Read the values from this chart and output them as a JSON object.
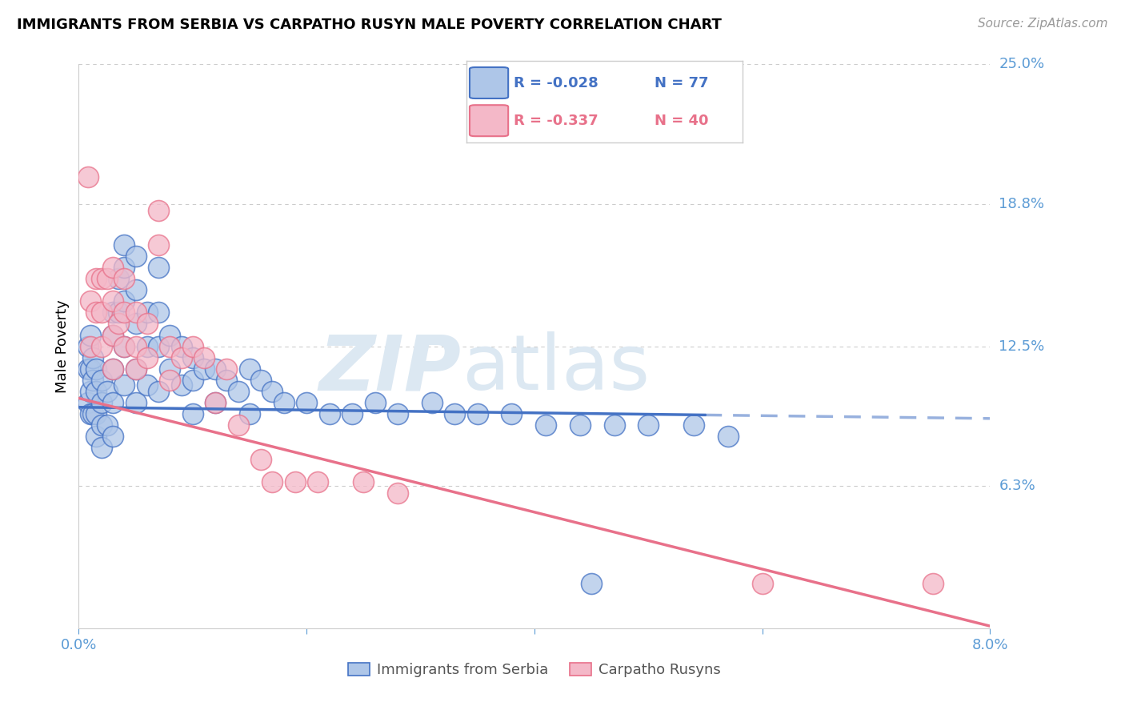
{
  "title": "IMMIGRANTS FROM SERBIA VS CARPATHO RUSYN MALE POVERTY CORRELATION CHART",
  "source": "Source: ZipAtlas.com",
  "xlabel_serbia": "Immigrants from Serbia",
  "xlabel_rusyn": "Carpatho Rusyns",
  "ylabel": "Male Poverty",
  "xlim": [
    0.0,
    0.08
  ],
  "ylim": [
    0.0,
    0.25
  ],
  "ytick_labels": [
    "25.0%",
    "18.8%",
    "12.5%",
    "6.3%"
  ],
  "ytick_vals": [
    0.25,
    0.188,
    0.125,
    0.063
  ],
  "legend_r_serbia": "R = -0.028",
  "legend_n_serbia": "N = 77",
  "legend_r_rusyn": "R = -0.337",
  "legend_n_rusyn": "N = 40",
  "color_serbia_fill": "#aec6e8",
  "color_rusyn_fill": "#f4b8c8",
  "color_serbia_edge": "#4472c4",
  "color_rusyn_edge": "#e8718a",
  "color_serbia_line": "#4472c4",
  "color_rusyn_line": "#e8718a",
  "color_tick_label": "#5b9bd5",
  "serbia_line_y0": 0.098,
  "serbia_line_y1": 0.093,
  "rusyn_line_y0": 0.102,
  "rusyn_line_y1": 0.001,
  "serbia_x": [
    0.0008,
    0.0008,
    0.0008,
    0.001,
    0.001,
    0.001,
    0.001,
    0.0012,
    0.0012,
    0.0012,
    0.0015,
    0.0015,
    0.0015,
    0.0015,
    0.002,
    0.002,
    0.002,
    0.002,
    0.0025,
    0.0025,
    0.003,
    0.003,
    0.003,
    0.003,
    0.003,
    0.0035,
    0.0035,
    0.004,
    0.004,
    0.004,
    0.004,
    0.004,
    0.005,
    0.005,
    0.005,
    0.005,
    0.005,
    0.006,
    0.006,
    0.006,
    0.007,
    0.007,
    0.007,
    0.007,
    0.008,
    0.008,
    0.009,
    0.009,
    0.01,
    0.01,
    0.01,
    0.011,
    0.012,
    0.012,
    0.013,
    0.014,
    0.015,
    0.015,
    0.016,
    0.017,
    0.018,
    0.02,
    0.022,
    0.024,
    0.026,
    0.028,
    0.031,
    0.033,
    0.035,
    0.038,
    0.041,
    0.044,
    0.047,
    0.05,
    0.054,
    0.057,
    0.045
  ],
  "serbia_y": [
    0.125,
    0.115,
    0.1,
    0.13,
    0.115,
    0.105,
    0.095,
    0.12,
    0.11,
    0.095,
    0.115,
    0.105,
    0.095,
    0.085,
    0.11,
    0.1,
    0.09,
    0.08,
    0.105,
    0.09,
    0.14,
    0.13,
    0.115,
    0.1,
    0.085,
    0.155,
    0.14,
    0.17,
    0.16,
    0.145,
    0.125,
    0.108,
    0.165,
    0.15,
    0.135,
    0.115,
    0.1,
    0.14,
    0.125,
    0.108,
    0.16,
    0.14,
    0.125,
    0.105,
    0.13,
    0.115,
    0.125,
    0.108,
    0.12,
    0.11,
    0.095,
    0.115,
    0.115,
    0.1,
    0.11,
    0.105,
    0.115,
    0.095,
    0.11,
    0.105,
    0.1,
    0.1,
    0.095,
    0.095,
    0.1,
    0.095,
    0.1,
    0.095,
    0.095,
    0.095,
    0.09,
    0.09,
    0.09,
    0.09,
    0.09,
    0.085,
    0.02
  ],
  "rusyn_x": [
    0.0008,
    0.001,
    0.001,
    0.0015,
    0.0015,
    0.002,
    0.002,
    0.002,
    0.0025,
    0.003,
    0.003,
    0.003,
    0.003,
    0.0035,
    0.004,
    0.004,
    0.004,
    0.005,
    0.005,
    0.005,
    0.006,
    0.006,
    0.007,
    0.007,
    0.008,
    0.008,
    0.009,
    0.01,
    0.011,
    0.012,
    0.013,
    0.014,
    0.016,
    0.017,
    0.019,
    0.021,
    0.025,
    0.028,
    0.06,
    0.075
  ],
  "rusyn_y": [
    0.2,
    0.145,
    0.125,
    0.155,
    0.14,
    0.155,
    0.14,
    0.125,
    0.155,
    0.16,
    0.145,
    0.13,
    0.115,
    0.135,
    0.155,
    0.14,
    0.125,
    0.14,
    0.125,
    0.115,
    0.135,
    0.12,
    0.185,
    0.17,
    0.125,
    0.11,
    0.12,
    0.125,
    0.12,
    0.1,
    0.115,
    0.09,
    0.075,
    0.065,
    0.065,
    0.065,
    0.065,
    0.06,
    0.02,
    0.02
  ]
}
